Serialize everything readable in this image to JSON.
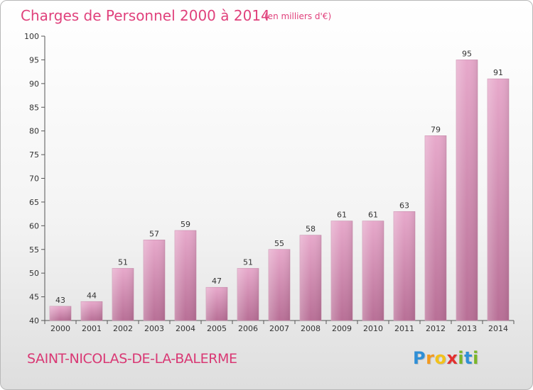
{
  "chart_data": {
    "type": "bar",
    "title": "Charges de Personnel 2000 à 2014",
    "subtitle": "(en milliers d'€)",
    "categories": [
      "2000",
      "2001",
      "2002",
      "2003",
      "2004",
      "2005",
      "2006",
      "2007",
      "2008",
      "2009",
      "2010",
      "2011",
      "2012",
      "2013",
      "2014"
    ],
    "values": [
      43,
      44,
      51,
      57,
      59,
      47,
      51,
      55,
      58,
      61,
      61,
      63,
      79,
      95,
      91
    ],
    "ylim": [
      40,
      100
    ],
    "yticks": [
      40,
      45,
      50,
      55,
      60,
      65,
      70,
      75,
      80,
      85,
      90,
      95,
      100
    ],
    "grid": false,
    "bar_color": "#d88fb6"
  },
  "location": "SAINT-NICOLAS-DE-LA-BALERME",
  "brand": {
    "letters": [
      {
        "ch": "P",
        "color": "#2f8fd6"
      },
      {
        "ch": "r",
        "color": "#f39a1f"
      },
      {
        "ch": "o",
        "color": "#f2c21b"
      },
      {
        "ch": "x",
        "color": "#e3302f"
      },
      {
        "ch": "i",
        "color": "#7ab629"
      },
      {
        "ch": "t",
        "color": "#2f8fd6"
      },
      {
        "ch": "i",
        "color": "#7ab629"
      }
    ]
  }
}
